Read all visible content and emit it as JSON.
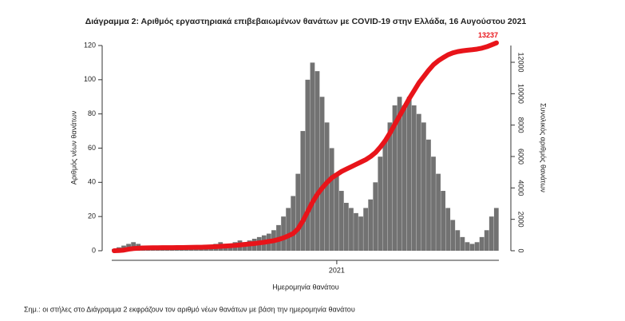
{
  "chart_data": {
    "type": "bar_line",
    "title": "Διάγραμμα 2: Αριθμός εργαστηριακά επιβεβαιωμένων θανάτων με COVID-19 στην Ελλάδα, 16 Αυγούστου 2021",
    "x_label": "Ημερομηνία θανάτου",
    "y_label": "Αριθμός νέων θανάτων",
    "y2_label": "Συνολικός αριθμός θανάτων",
    "note": "Σημ.: οι στήλες στο Διάγραμμα 2 εκφράζουν τον αριθμό νέων θανάτων με βάση την ημερομηνία θανάτου",
    "categories": [
      null,
      null,
      null,
      null,
      null,
      null,
      null,
      null,
      null,
      null,
      null,
      null,
      null,
      null,
      null,
      null,
      null,
      null,
      null,
      null,
      null,
      null,
      null,
      null,
      null,
      null,
      null,
      null,
      null,
      null,
      null,
      null,
      null,
      null,
      null,
      null,
      null,
      null,
      null,
      null,
      null,
      null,
      null,
      null,
      null,
      null,
      "2021",
      null,
      null,
      null,
      null,
      null,
      null,
      null,
      null,
      null,
      null,
      null,
      null,
      null,
      null,
      null,
      null,
      null,
      null,
      null,
      null,
      null,
      null,
      null,
      null,
      null,
      null,
      null,
      null,
      null,
      null,
      null,
      null,
      null
    ],
    "ylim": [
      0,
      120
    ],
    "yticks": [
      0,
      20,
      40,
      60,
      80,
      100,
      120
    ],
    "y2lim": [
      0,
      13068
    ],
    "y2ticks": [
      0,
      2000,
      4000,
      6000,
      8000,
      10000,
      12000
    ],
    "series": [
      {
        "color": "#727272",
        "values": [
          1,
          2,
          3,
          4,
          5,
          4,
          3,
          3,
          2,
          2,
          1,
          1,
          1,
          2,
          1,
          1,
          2,
          2,
          2,
          3,
          3,
          4,
          5,
          4,
          3,
          5,
          6,
          5,
          6,
          7,
          8,
          9,
          10,
          12,
          15,
          20,
          25,
          32,
          45,
          70,
          100,
          110,
          105,
          90,
          75,
          60,
          45,
          35,
          28,
          25,
          22,
          20,
          25,
          30,
          40,
          55,
          65,
          75,
          85,
          90,
          85,
          90,
          85,
          80,
          75,
          65,
          55,
          45,
          35,
          25,
          18,
          12,
          8,
          5,
          4,
          5,
          8,
          12,
          20,
          25
        ]
      },
      {
        "color": "#e8141a",
        "axis": "y2",
        "values": [
          0,
          10,
          40,
          100,
          140,
          160,
          175,
          185,
          190,
          192,
          195,
          200,
          200,
          205,
          205,
          210,
          215,
          220,
          225,
          235,
          245,
          260,
          280,
          300,
          320,
          340,
          370,
          400,
          430,
          460,
          500,
          540,
          590,
          640,
          720,
          820,
          950,
          1100,
          1400,
          1900,
          2500,
          3100,
          3600,
          4000,
          4350,
          4650,
          4850,
          5050,
          5200,
          5350,
          5500,
          5650,
          5800,
          6000,
          6250,
          6600,
          7000,
          7500,
          8050,
          8600,
          9150,
          9700,
          10200,
          10700,
          11100,
          11500,
          11850,
          12100,
          12300,
          12480,
          12600,
          12680,
          12730,
          12770,
          12800,
          12840,
          12900,
          12990,
          13110,
          13237
        ],
        "value_labels": [
          null,
          null,
          null,
          null,
          null,
          null,
          null,
          null,
          null,
          null,
          null,
          null,
          null,
          null,
          null,
          null,
          null,
          null,
          null,
          null,
          null,
          null,
          null,
          null,
          null,
          null,
          null,
          null,
          null,
          null,
          null,
          null,
          null,
          null,
          null,
          null,
          null,
          null,
          null,
          null,
          null,
          null,
          null,
          null,
          null,
          null,
          null,
          null,
          null,
          null,
          null,
          null,
          null,
          null,
          null,
          null,
          null,
          null,
          null,
          null,
          null,
          null,
          null,
          null,
          null,
          null,
          null,
          null,
          null,
          null,
          null,
          null,
          null,
          null,
          null,
          null,
          null,
          null,
          null,
          "13237"
        ]
      }
    ]
  }
}
